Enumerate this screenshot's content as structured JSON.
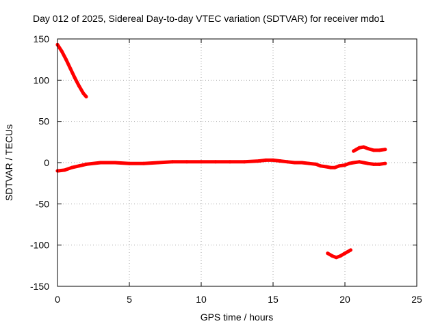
{
  "chart_data": {
    "type": "line",
    "title": "Day 012 of 2025, Sidereal Day-to-day VTEC variation (SDTVAR) for receiver mdo1",
    "xlabel": "GPS time / hours",
    "ylabel": "SDTVAR / TECUs",
    "xlim": [
      0,
      25
    ],
    "ylim": [
      -150,
      150
    ],
    "x_ticks": [
      0,
      5,
      10,
      15,
      20,
      25
    ],
    "y_ticks": [
      -150,
      -100,
      -50,
      0,
      50,
      100,
      150
    ],
    "grid": true,
    "series_color": "#ff0000",
    "series": [
      {
        "name": "segment-1",
        "x": [
          0.0,
          0.3,
          0.6,
          0.9,
          1.2,
          1.5,
          1.8,
          2.0
        ],
        "y": [
          143,
          135,
          125,
          114,
          103,
          93,
          84,
          80
        ]
      },
      {
        "name": "segment-2",
        "x": [
          0.0,
          0.5,
          1.0,
          1.5,
          2.0,
          3.0,
          4.0,
          5.0,
          6.0,
          7.0,
          8.0,
          9.0,
          10.0,
          11.0,
          12.0,
          13.0,
          14.0,
          14.5,
          15.0,
          15.5,
          16.0,
          16.5,
          17.0,
          17.5,
          18.0,
          18.3,
          18.7,
          19.0,
          19.3,
          19.6,
          20.0,
          20.3,
          20.6,
          21.0,
          21.3,
          21.6,
          22.0,
          22.4,
          22.8
        ],
        "y": [
          -10,
          -9,
          -6,
          -4,
          -2,
          0,
          0,
          -1,
          -1,
          0,
          1,
          1,
          1,
          1,
          1,
          1,
          2,
          3,
          3,
          2,
          1,
          0,
          0,
          -1,
          -2,
          -4,
          -5,
          -6,
          -6,
          -4,
          -3,
          -1,
          0,
          1,
          0,
          -1,
          -2,
          -2,
          -1
        ]
      },
      {
        "name": "segment-3",
        "x": [
          20.6,
          20.8,
          21.0,
          21.3,
          21.6,
          22.0,
          22.4,
          22.8
        ],
        "y": [
          14,
          16,
          18,
          19,
          17,
          15,
          15,
          16
        ]
      },
      {
        "name": "segment-4",
        "x": [
          18.8,
          19.1,
          19.4,
          19.7,
          20.0,
          20.4
        ],
        "y": [
          -110,
          -113,
          -115,
          -113,
          -110,
          -106
        ]
      }
    ]
  }
}
